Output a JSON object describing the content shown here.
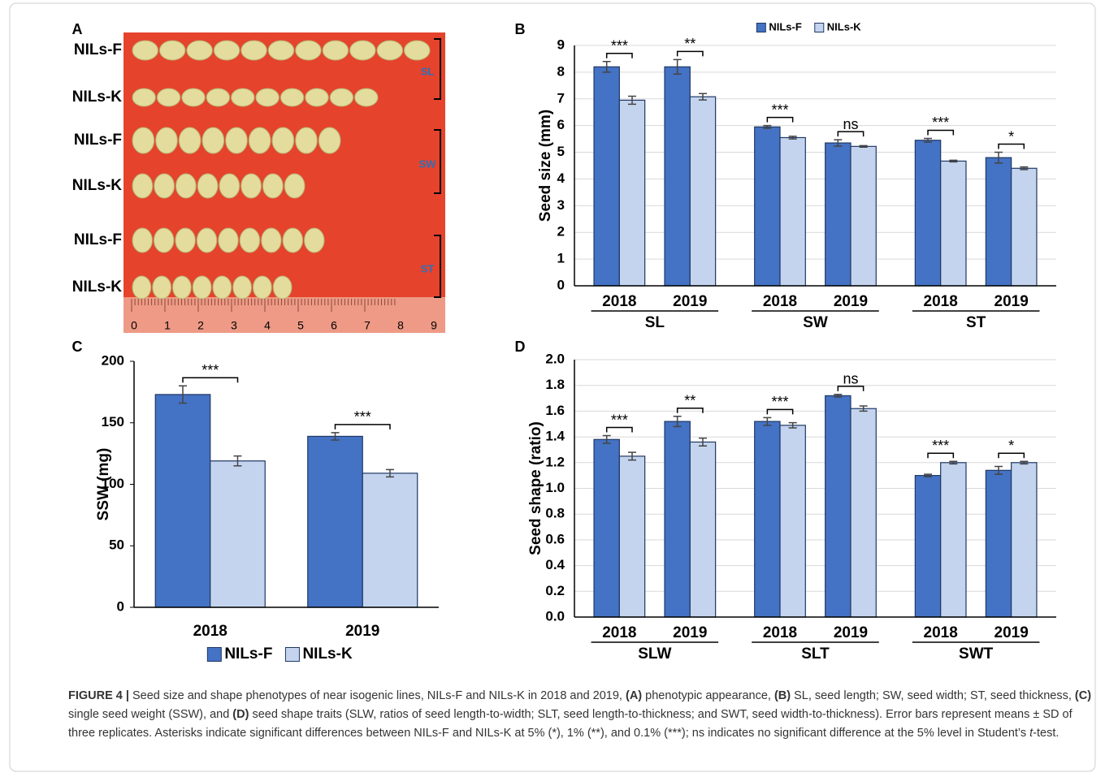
{
  "panel_a": {
    "label": "A",
    "rows": [
      "NILs-F",
      "NILs-K",
      "NILs-F",
      "NILs-K",
      "NILs-F",
      "NILs-K"
    ],
    "brackets": [
      "SL",
      "SW",
      "ST"
    ],
    "ruler": [
      0,
      1,
      2,
      3,
      4,
      5,
      6,
      7,
      8,
      9
    ]
  },
  "chart_data": [
    {
      "type": "bar",
      "panel": "B",
      "y_label": "Seed size (mm)",
      "categories": [
        "2018",
        "2019",
        "2018",
        "2019",
        "2018",
        "2019"
      ],
      "groups": [
        "SL",
        "SW",
        "ST"
      ],
      "series": [
        {
          "name": "NILs-F",
          "color": "#4472c4",
          "values": [
            8.2,
            8.2,
            5.95,
            5.35,
            5.45,
            4.8
          ],
          "errors": [
            0.2,
            0.27,
            0.05,
            0.12,
            0.07,
            0.2
          ]
        },
        {
          "name": "NILs-K",
          "color": "#c4d4ee",
          "values": [
            6.95,
            7.08,
            5.55,
            5.22,
            4.67,
            4.4
          ],
          "errors": [
            0.15,
            0.12,
            0.05,
            0.03,
            0.03,
            0.05
          ]
        }
      ],
      "significance": [
        "***",
        "**",
        "***",
        "ns",
        "***",
        "*"
      ],
      "ylim": [
        0,
        9
      ],
      "yticks": [
        0,
        1,
        2,
        3,
        4,
        5,
        6,
        7,
        8,
        9
      ],
      "grid": true,
      "legend": "top"
    },
    {
      "type": "bar",
      "panel": "C",
      "y_label": "SSW (mg)",
      "categories": [
        "2018",
        "2019"
      ],
      "series": [
        {
          "name": "NILs-F",
          "color": "#4472c4",
          "values": [
            173,
            139
          ],
          "errors": [
            7,
            3
          ]
        },
        {
          "name": "NILs-K",
          "color": "#c4d4ee",
          "values": [
            119,
            109
          ],
          "errors": [
            4,
            3
          ]
        }
      ],
      "significance": [
        "***",
        "***"
      ],
      "ylim": [
        0,
        200
      ],
      "yticks": [
        0,
        50,
        100,
        150,
        200
      ],
      "grid": false,
      "legend": "bottom"
    },
    {
      "type": "bar",
      "panel": "D",
      "y_label": "Seed shape (ratio)",
      "categories": [
        "2018",
        "2019",
        "2018",
        "2019",
        "2018",
        "2019"
      ],
      "groups": [
        "SLW",
        "SLT",
        "SWT"
      ],
      "series": [
        {
          "name": "NILs-F",
          "color": "#4472c4",
          "values": [
            1.38,
            1.52,
            1.52,
            1.72,
            1.1,
            1.14
          ],
          "errors": [
            0.03,
            0.04,
            0.03,
            0.01,
            0.01,
            0.03
          ]
        },
        {
          "name": "NILs-K",
          "color": "#c4d4ee",
          "values": [
            1.25,
            1.36,
            1.49,
            1.62,
            1.2,
            1.2
          ],
          "errors": [
            0.03,
            0.03,
            0.02,
            0.02,
            0.01,
            0.01
          ]
        }
      ],
      "significance": [
        "***",
        "**",
        "***",
        "ns",
        "***",
        "*"
      ],
      "ylim": [
        0,
        2
      ],
      "yticks": [
        {
          "value": 0,
          "label": "0.0"
        },
        {
          "value": 0.2,
          "label": "0.2"
        },
        {
          "value": 0.4,
          "label": "0.4"
        },
        {
          "value": 0.6,
          "label": "0.6"
        },
        {
          "value": 0.8,
          "label": "0.8"
        },
        {
          "value": 1,
          "label": "1.0"
        },
        {
          "value": 1.2,
          "label": "1.2"
        },
        {
          "value": 1.4,
          "label": "1.4"
        },
        {
          "value": 1.6,
          "label": "1.6"
        },
        {
          "value": 1.8,
          "label": "1.8"
        },
        {
          "value": 2,
          "label": "2.0"
        }
      ],
      "grid": true,
      "legend": "none"
    }
  ],
  "caption": [
    {
      "text": "FIGURE 4 |",
      "bold": true
    },
    {
      "text": " Seed size and shape phenotypes of near isogenic lines, NILs-F and NILs-K in 2018 and 2019, "
    },
    {
      "text": "(A)",
      "bold": true
    },
    {
      "text": " phenotypic appearance, "
    },
    {
      "text": "(B)",
      "bold": true
    },
    {
      "text": " SL, seed length; SW, seed width; ST, seed thickness, "
    },
    {
      "text": "(C)",
      "bold": true
    },
    {
      "text": " single seed weight (SSW), and "
    },
    {
      "text": "(D)",
      "bold": true
    },
    {
      "text": " seed shape traits (SLW, ratios of seed length-to-width; SLT, seed length-to-thickness; and SWT, seed width-to-thickness). Error bars represent means ± SD of three replicates. Asterisks indicate significant differences between NILs-F and NILs-K at 5% (*), 1% (**), and 0.1% (***); ns indicates no significant difference at the 5% level in Student’s "
    },
    {
      "text": "t",
      "italic": true
    },
    {
      "text": "-test."
    }
  ]
}
